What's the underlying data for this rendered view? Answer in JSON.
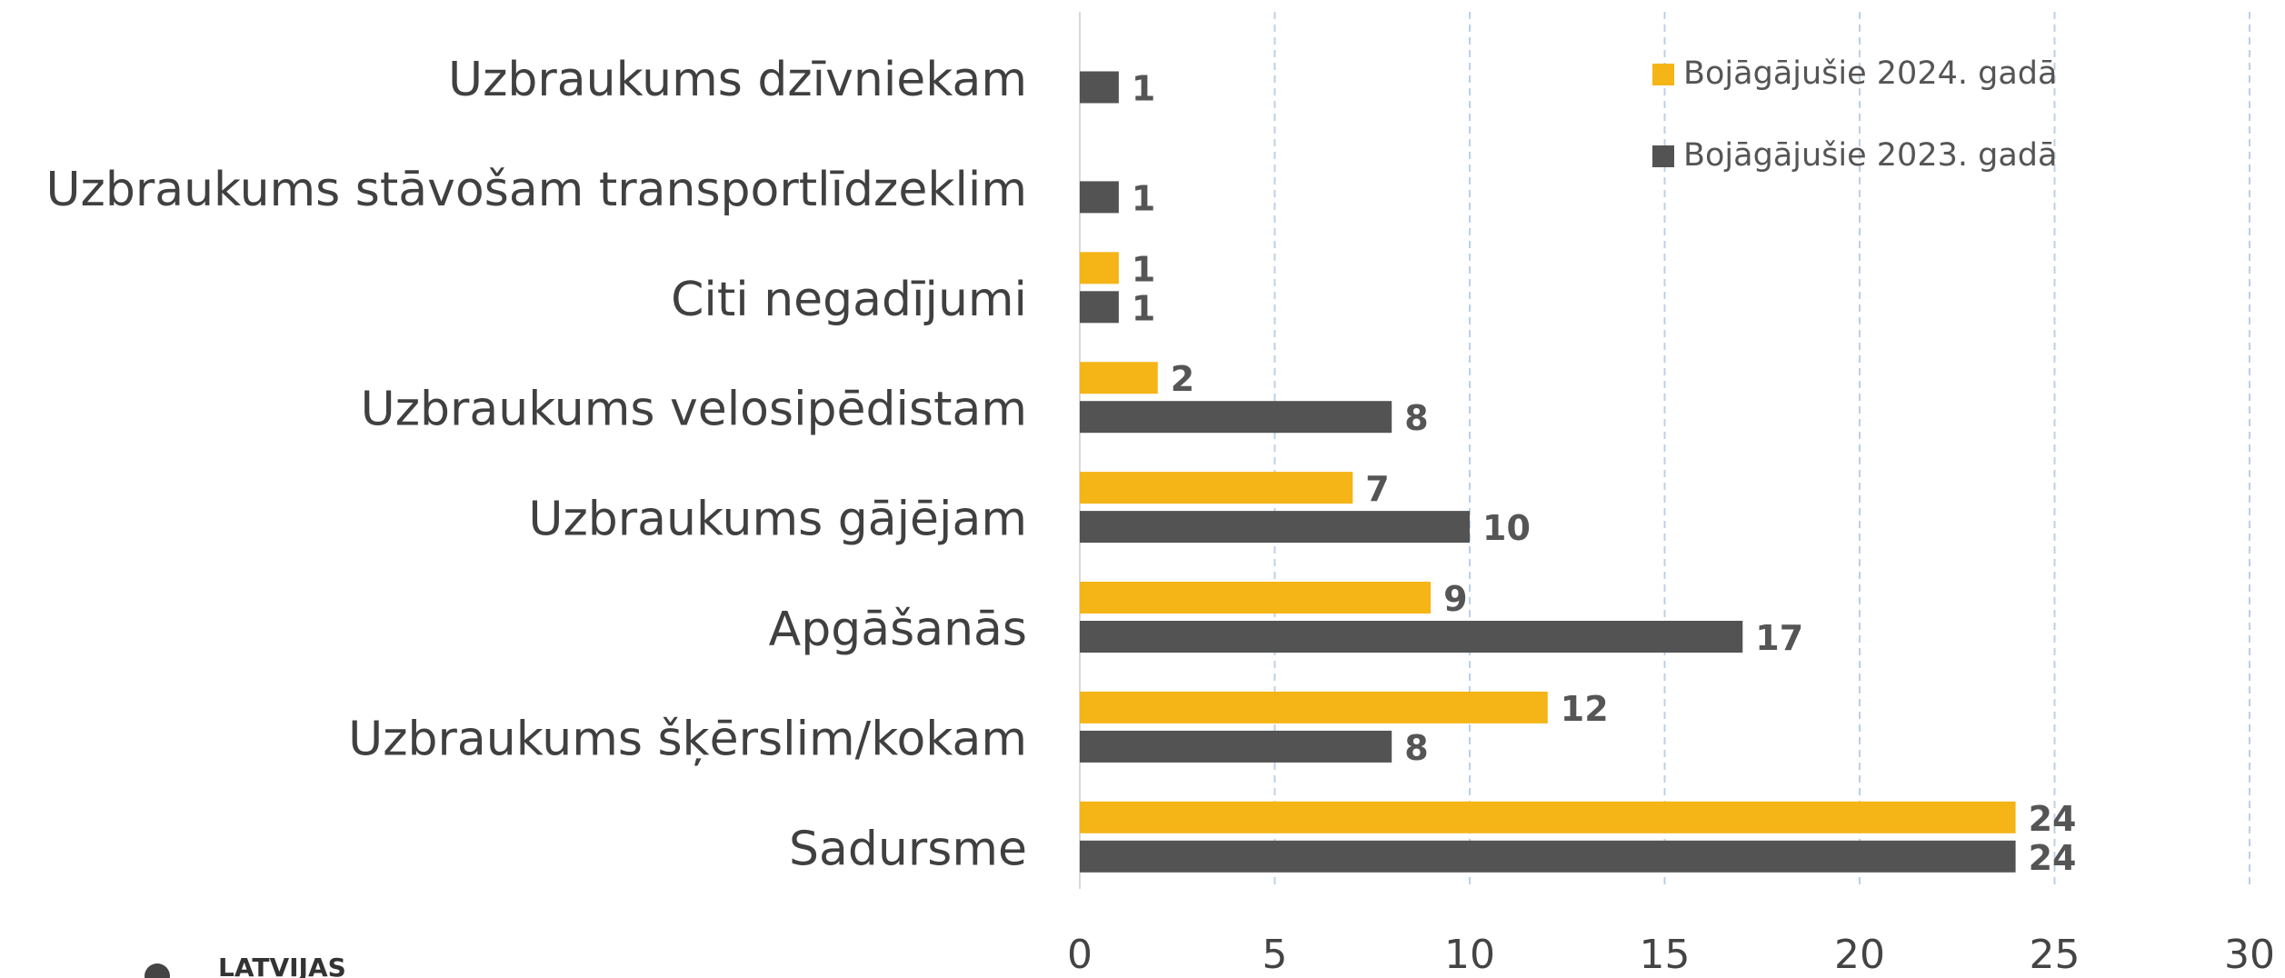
{
  "chart_data": {
    "type": "hbar",
    "categories": [
      "Uzbraukums dzīvniekam",
      "Uzbraukums stāvošam transportlīdzeklim",
      "Citi negadījumi",
      "Uzbraukums velosipēdistam",
      "Uzbraukums gājējam",
      "Apgāšanās",
      "Uzbraukums šķērslim/kokam",
      "Sadursme"
    ],
    "series": [
      {
        "name": "Bojāgājušie 2024. gadā",
        "color": "#f5b516",
        "values": [
          null,
          null,
          1,
          2,
          7,
          9,
          12,
          24
        ]
      },
      {
        "name": "Bojāgājušie 2023. gadā",
        "color": "#535353",
        "values": [
          1,
          1,
          1,
          8,
          10,
          17,
          8,
          24
        ]
      }
    ],
    "xlim": [
      0,
      30
    ],
    "xticks": [
      0,
      5,
      10,
      15,
      20,
      25,
      30
    ],
    "grid": true,
    "legend": "top-right"
  },
  "logo_text": "LATVIJAS"
}
